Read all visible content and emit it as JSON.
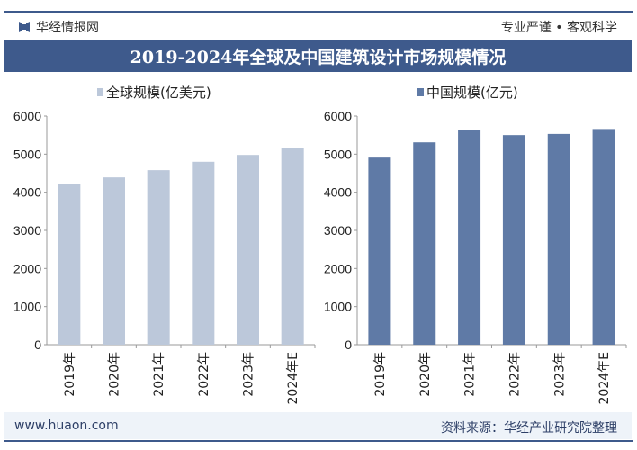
{
  "header": {
    "brand": "华经情报网",
    "slogan": "专业严谨 • 客观科学"
  },
  "title": "2019-2024年全球及中国建筑设计市场规模情况",
  "footer": {
    "site": "www.huaon.com",
    "source": "资料来源：华经产业研究院整理"
  },
  "colors": {
    "accent": "#3e5a8c",
    "global_bar": "#bcc8da",
    "china_bar": "#5f7aa6"
  },
  "chart_data": [
    {
      "type": "bar",
      "categories": [
        "2019年",
        "2020年",
        "2021年",
        "2022年",
        "2023年",
        "2024年E"
      ],
      "series": [
        {
          "name": "全球规模(亿美元)",
          "values": [
            4220,
            4390,
            4580,
            4800,
            4980,
            5170
          ]
        }
      ],
      "ylim": [
        0,
        6000
      ],
      "yticks": [
        0,
        1000,
        2000,
        3000,
        4000,
        5000,
        6000
      ],
      "legend": "top",
      "grid": false
    },
    {
      "type": "bar",
      "categories": [
        "2019年",
        "2020年",
        "2021年",
        "2022年",
        "2023年",
        "2024年E"
      ],
      "series": [
        {
          "name": "中国规模(亿元)",
          "values": [
            4910,
            5310,
            5640,
            5500,
            5530,
            5660
          ]
        }
      ],
      "ylim": [
        0,
        6000
      ],
      "yticks": [
        0,
        1000,
        2000,
        3000,
        4000,
        5000,
        6000
      ],
      "legend": "top",
      "grid": false
    }
  ]
}
